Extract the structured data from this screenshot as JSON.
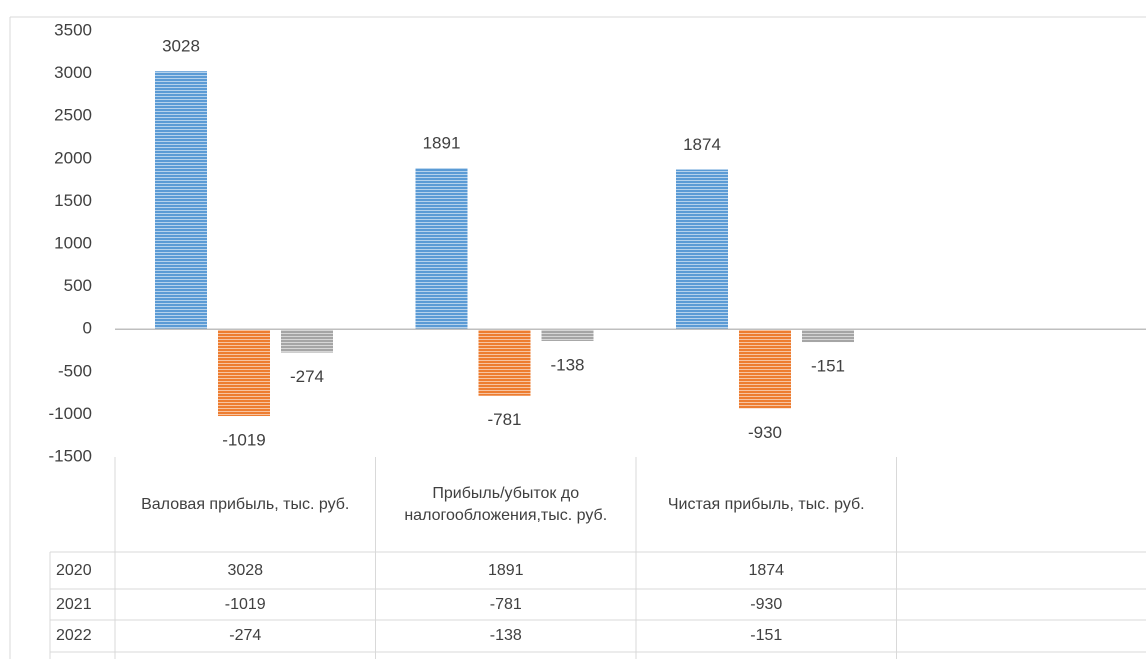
{
  "chart_data": {
    "type": "bar",
    "categories": [
      "Валовая прибыль, тыс. руб.",
      "Прибыль/убыток до налогообложения,тыс. руб.",
      "Чистая прибыль, тыс. руб.",
      null
    ],
    "series": [
      {
        "name": "2020",
        "color": "#5b9bd5",
        "values": [
          3028,
          1891,
          1874,
          null
        ]
      },
      {
        "name": "2021",
        "color": "#ed7d31",
        "values": [
          -1019,
          -781,
          -930,
          null
        ]
      },
      {
        "name": "2022",
        "color": "#a5a5a5",
        "values": [
          -274,
          -138,
          -151,
          null
        ]
      }
    ],
    "ylim": [
      -1500,
      3500
    ],
    "yticks": [
      -1500,
      -1000,
      -500,
      0,
      500,
      1000,
      1500,
      2000,
      2500,
      3000,
      3500
    ],
    "grid": false,
    "pattern": "horizontal-stripes",
    "data_table": true
  }
}
